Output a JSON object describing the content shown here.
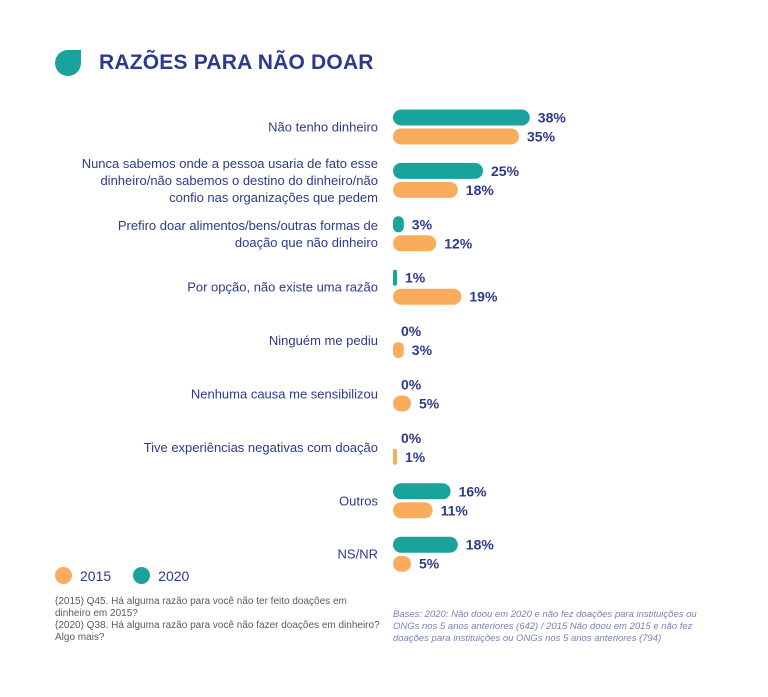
{
  "title": "RAZÕES PARA NÃO DOAR",
  "colors": {
    "2015": "#f9ad5c",
    "2020": "#1aa39c",
    "text": "#2d3a8c"
  },
  "legend": [
    {
      "name": "2015",
      "color": "#f9ad5c"
    },
    {
      "name": "2020",
      "color": "#1aa39c"
    }
  ],
  "chart_data": {
    "type": "bar",
    "orientation": "horizontal",
    "title": "RAZÕES PARA NÃO DOAR",
    "categories": [
      [
        "Não tenho dinheiro"
      ],
      [
        "Nunca sabemos onde a pessoa usaria de fato esse",
        "dinheiro/não sabemos o destino do dinheiro/não",
        "confio nas organizações que pedem"
      ],
      [
        "Prefiro doar alimentos/bens/outras formas de",
        "doação que não dinheiro"
      ],
      [
        "Por opção, não existe uma razão"
      ],
      [
        "Ninguém me pediu"
      ],
      [
        "Nenhuma causa me sensibilizou"
      ],
      [
        "Tive experiências negativas com doação"
      ],
      [
        "Outros"
      ],
      [
        "NS/NR"
      ]
    ],
    "series": [
      {
        "name": "2020",
        "values": [
          38,
          25,
          3,
          1,
          0,
          0,
          0,
          16,
          18
        ]
      },
      {
        "name": "2015",
        "values": [
          35,
          18,
          12,
          19,
          3,
          5,
          1,
          11,
          5
        ]
      }
    ],
    "value_suffix": "%",
    "legend_position": "bottom-left"
  },
  "footnotes": {
    "left": [
      "(2015) Q45. Há alguma razão para você não ter feito doações em",
      "dinheiro em 2015?",
      "(2020) Q38. Há alguma razão para você não fazer doações em dinheiro?",
      "Algo mais?"
    ],
    "right": [
      "Bases: 2020: Não doou em 2020 e não fez doações para instituições ou",
      "ONGs nos 5 anos anteriores (642) / 2015 Não doou em 2015 e não fez",
      "doações para instituições ou ONGs nos 5 anos anteriores (794)"
    ]
  }
}
